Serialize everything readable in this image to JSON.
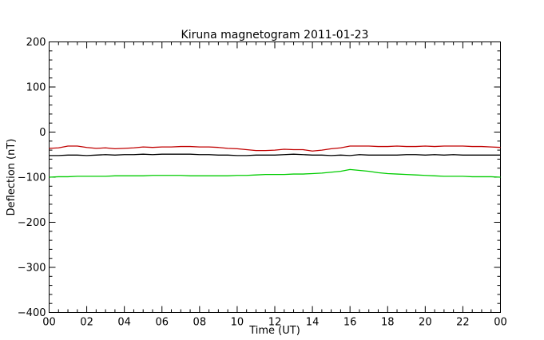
{
  "chart_data": {
    "type": "line",
    "title": "Kiruna magnetogram 2011-01-23",
    "xlabel": "Time (UT)",
    "ylabel": "Deflection (nT)",
    "xlim": [
      0,
      24
    ],
    "ylim": [
      -400,
      200
    ],
    "x_ticks": [
      "00",
      "02",
      "04",
      "06",
      "08",
      "10",
      "12",
      "14",
      "16",
      "18",
      "20",
      "22",
      "00"
    ],
    "y_ticks": [
      "200",
      "100",
      "0",
      "−100",
      "−200",
      "−300",
      "−400"
    ],
    "grid": false,
    "legend": "none",
    "x": [
      0,
      0.5,
      1,
      1.5,
      2,
      2.5,
      3,
      3.5,
      4,
      4.5,
      5,
      5.5,
      6,
      6.5,
      7,
      7.5,
      8,
      8.5,
      9,
      9.5,
      10,
      10.5,
      11,
      11.5,
      12,
      12.5,
      13,
      13.5,
      14,
      14.5,
      15,
      15.5,
      16,
      16.5,
      17,
      17.5,
      18,
      18.5,
      19,
      19.5,
      20,
      20.5,
      21,
      21.5,
      22,
      22.5,
      23,
      23.5,
      24
    ],
    "series": [
      {
        "color": "#c00000",
        "values": [
          -36,
          -35,
          -31,
          -31,
          -34,
          -36,
          -35,
          -37,
          -36,
          -35,
          -33,
          -34,
          -33,
          -33,
          -32,
          -32,
          -33,
          -33,
          -34,
          -36,
          -37,
          -39,
          -41,
          -41,
          -40,
          -38,
          -39,
          -39,
          -42,
          -40,
          -37,
          -35,
          -31,
          -31,
          -31,
          -32,
          -32,
          -31,
          -32,
          -32,
          -31,
          -32,
          -31,
          -31,
          -31,
          -32,
          -32,
          -33,
          -34
        ]
      },
      {
        "color": "#000000",
        "values": [
          -52,
          -52,
          -51,
          -51,
          -52,
          -51,
          -50,
          -51,
          -50,
          -50,
          -49,
          -50,
          -49,
          -49,
          -49,
          -49,
          -50,
          -50,
          -51,
          -51,
          -52,
          -52,
          -51,
          -51,
          -51,
          -50,
          -49,
          -50,
          -51,
          -51,
          -52,
          -51,
          -52,
          -50,
          -51,
          -51,
          -51,
          -51,
          -50,
          -50,
          -51,
          -50,
          -51,
          -50,
          -51,
          -51,
          -51,
          -51,
          -51
        ]
      },
      {
        "color": "#00cc00",
        "values": [
          -100,
          -99,
          -99,
          -98,
          -98,
          -98,
          -98,
          -97,
          -97,
          -97,
          -97,
          -96,
          -96,
          -96,
          -96,
          -97,
          -97,
          -97,
          -97,
          -97,
          -96,
          -96,
          -95,
          -94,
          -94,
          -94,
          -93,
          -93,
          -92,
          -91,
          -89,
          -87,
          -83,
          -85,
          -87,
          -90,
          -92,
          -93,
          -94,
          -95,
          -96,
          -97,
          -98,
          -98,
          -98,
          -99,
          -99,
          -99,
          -100
        ]
      }
    ]
  }
}
